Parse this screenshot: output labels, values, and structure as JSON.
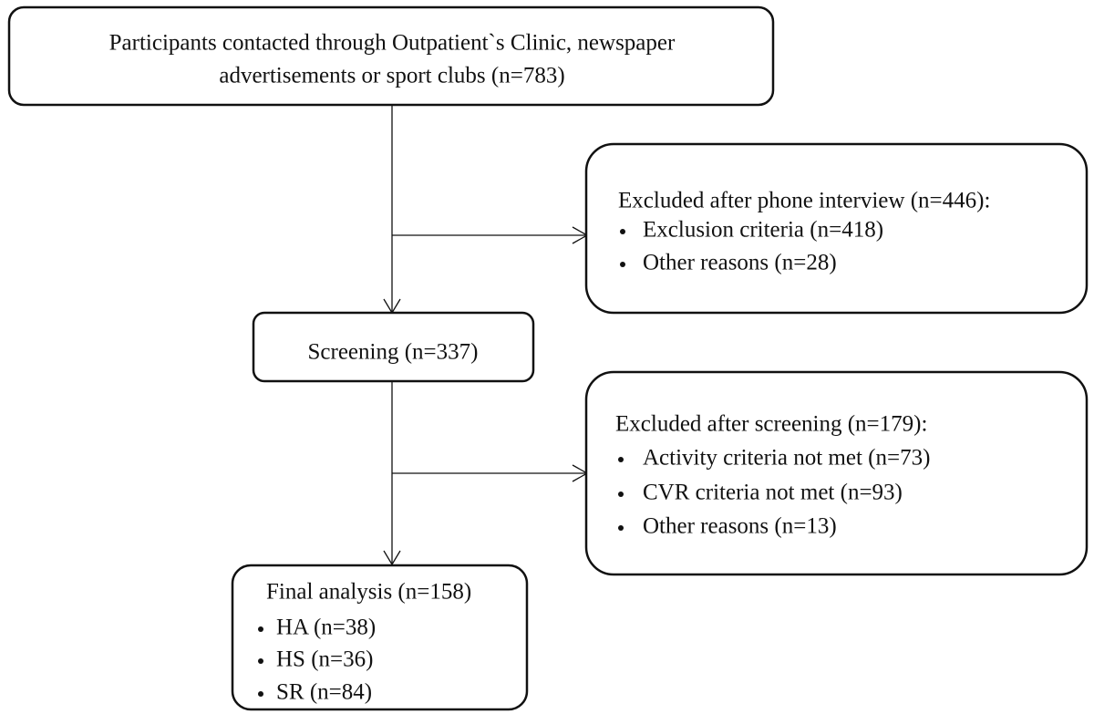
{
  "nodes": [
    {
      "lines": [
        "Participants contacted through Outpatient`s Clinic, newspaper",
        "advertisements or sport clubs (n=783)"
      ]
    },
    {
      "title": "Excluded after phone interview (n=446):",
      "items": [
        "Exclusion criteria (n=418)",
        "Other reasons (n=28)"
      ]
    },
    {
      "title": "Screening (n=337)"
    },
    {
      "title": "Excluded after screening (n=179):",
      "items": [
        "Activity criteria not met (n=73)",
        "CVR criteria not met (n=93)",
        "Other reasons (n=13)"
      ]
    },
    {
      "title": "Final analysis (n=158)",
      "items": [
        "HA (n=38)",
        "HS (n=36)",
        "SR (n=84)"
      ]
    }
  ]
}
